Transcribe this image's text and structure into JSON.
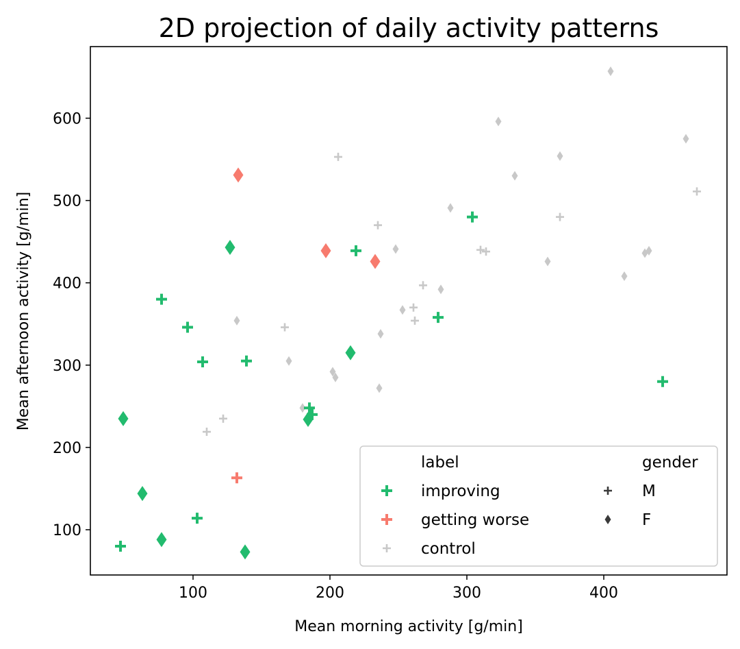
{
  "chart_data": {
    "type": "scatter",
    "title": "2D projection of daily activity patterns",
    "xlabel": "Mean morning activity [g/min]",
    "ylabel": "Mean afternoon activity [g/min]",
    "xlim": [
      25,
      490
    ],
    "ylim": [
      45,
      687
    ],
    "xticks": [
      100,
      200,
      300,
      400
    ],
    "yticks": [
      100,
      200,
      300,
      400,
      500,
      600
    ],
    "grid": false,
    "legend_position": "lower-right",
    "legend": {
      "hue_title": "label",
      "style_title": "gender",
      "hue_entries": [
        {
          "name": "improving",
          "color": "#22bb6e"
        },
        {
          "name": "getting worse",
          "color": "#f77b6e"
        },
        {
          "name": "control",
          "color": "#c8c8c8"
        }
      ],
      "style_entries": [
        {
          "name": "M",
          "marker": "plus"
        },
        {
          "name": "F",
          "marker": "diamond"
        }
      ],
      "marker_color": "#3a3a3a"
    },
    "series": [
      {
        "name": "improving",
        "gender": "M",
        "color": "#22bb6e",
        "marker": "plus",
        "points": [
          [
            47,
            80
          ],
          [
            77,
            380
          ],
          [
            96,
            346
          ],
          [
            103,
            114
          ],
          [
            107,
            304
          ],
          [
            139,
            305
          ],
          [
            185,
            248
          ],
          [
            187,
            240
          ],
          [
            219,
            439
          ],
          [
            279,
            358
          ],
          [
            304,
            480
          ],
          [
            443,
            280
          ]
        ]
      },
      {
        "name": "improving",
        "gender": "F",
        "color": "#22bb6e",
        "marker": "diamond",
        "points": [
          [
            49,
            235
          ],
          [
            63,
            144
          ],
          [
            77,
            88
          ],
          [
            127,
            443
          ],
          [
            138,
            73
          ],
          [
            184,
            234
          ],
          [
            215,
            315
          ]
        ]
      },
      {
        "name": "getting worse",
        "gender": "M",
        "color": "#f77b6e",
        "marker": "plus",
        "points": [
          [
            132,
            163
          ]
        ]
      },
      {
        "name": "getting worse",
        "gender": "F",
        "color": "#f77b6e",
        "marker": "diamond",
        "points": [
          [
            133,
            531
          ],
          [
            197,
            439
          ],
          [
            233,
            426
          ]
        ]
      },
      {
        "name": "control",
        "gender": "M",
        "color": "#c8c8c8",
        "marker": "plus",
        "points": [
          [
            110,
            219
          ],
          [
            122,
            235
          ],
          [
            167,
            346
          ],
          [
            206,
            553
          ],
          [
            235,
            470
          ],
          [
            268,
            397
          ],
          [
            261,
            370
          ],
          [
            262,
            354
          ],
          [
            310,
            440
          ],
          [
            314,
            438
          ],
          [
            368,
            480
          ],
          [
            468,
            511
          ]
        ]
      },
      {
        "name": "control",
        "gender": "F",
        "color": "#c8c8c8",
        "marker": "diamond",
        "points": [
          [
            132,
            354
          ],
          [
            170,
            305
          ],
          [
            180,
            248
          ],
          [
            202,
            292
          ],
          [
            204,
            285
          ],
          [
            236,
            272
          ],
          [
            237,
            338
          ],
          [
            248,
            441
          ],
          [
            253,
            367
          ],
          [
            281,
            392
          ],
          [
            288,
            491
          ],
          [
            323,
            596
          ],
          [
            335,
            530
          ],
          [
            359,
            426
          ],
          [
            368,
            554
          ],
          [
            405,
            657
          ],
          [
            415,
            408
          ],
          [
            430,
            436
          ],
          [
            433,
            439
          ],
          [
            460,
            575
          ]
        ]
      }
    ]
  }
}
